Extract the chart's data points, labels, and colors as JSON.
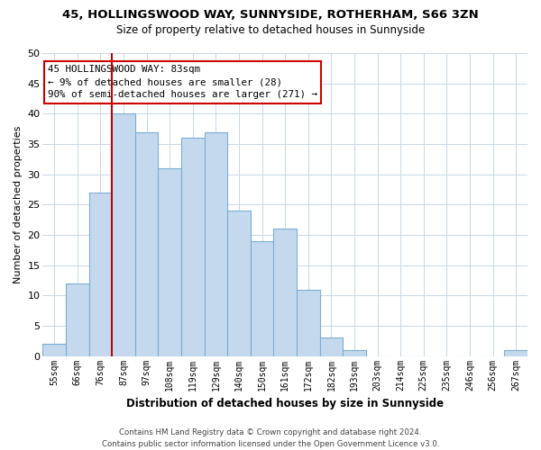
{
  "title1": "45, HOLLINGSWOOD WAY, SUNNYSIDE, ROTHERHAM, S66 3ZN",
  "title2": "Size of property relative to detached houses in Sunnyside",
  "xlabel": "Distribution of detached houses by size in Sunnyside",
  "ylabel": "Number of detached properties",
  "bar_labels": [
    "55sqm",
    "66sqm",
    "76sqm",
    "87sqm",
    "97sqm",
    "108sqm",
    "119sqm",
    "129sqm",
    "140sqm",
    "150sqm",
    "161sqm",
    "172sqm",
    "182sqm",
    "193sqm",
    "203sqm",
    "214sqm",
    "225sqm",
    "235sqm",
    "246sqm",
    "256sqm",
    "267sqm"
  ],
  "bar_values": [
    2,
    12,
    27,
    40,
    37,
    31,
    36,
    37,
    24,
    19,
    21,
    11,
    3,
    1,
    0,
    0,
    0,
    0,
    0,
    0,
    1
  ],
  "bar_color": "#c5d9ee",
  "bar_edge_color": "#7aadd4",
  "vline_color": "#cc0000",
  "ylim": [
    0,
    50
  ],
  "yticks": [
    0,
    5,
    10,
    15,
    20,
    25,
    30,
    35,
    40,
    45,
    50
  ],
  "annotation_title": "45 HOLLINGSWOOD WAY: 83sqm",
  "annotation_line1": "← 9% of detached houses are smaller (28)",
  "annotation_line2": "90% of semi-detached houses are larger (271) →",
  "annotation_box_color": "#ffffff",
  "annotation_border_color": "#cc0000",
  "footer1": "Contains HM Land Registry data © Crown copyright and database right 2024.",
  "footer2": "Contains public sector information licensed under the Open Government Licence v3.0.",
  "background_color": "#ffffff",
  "grid_color": "#c8d8e8"
}
